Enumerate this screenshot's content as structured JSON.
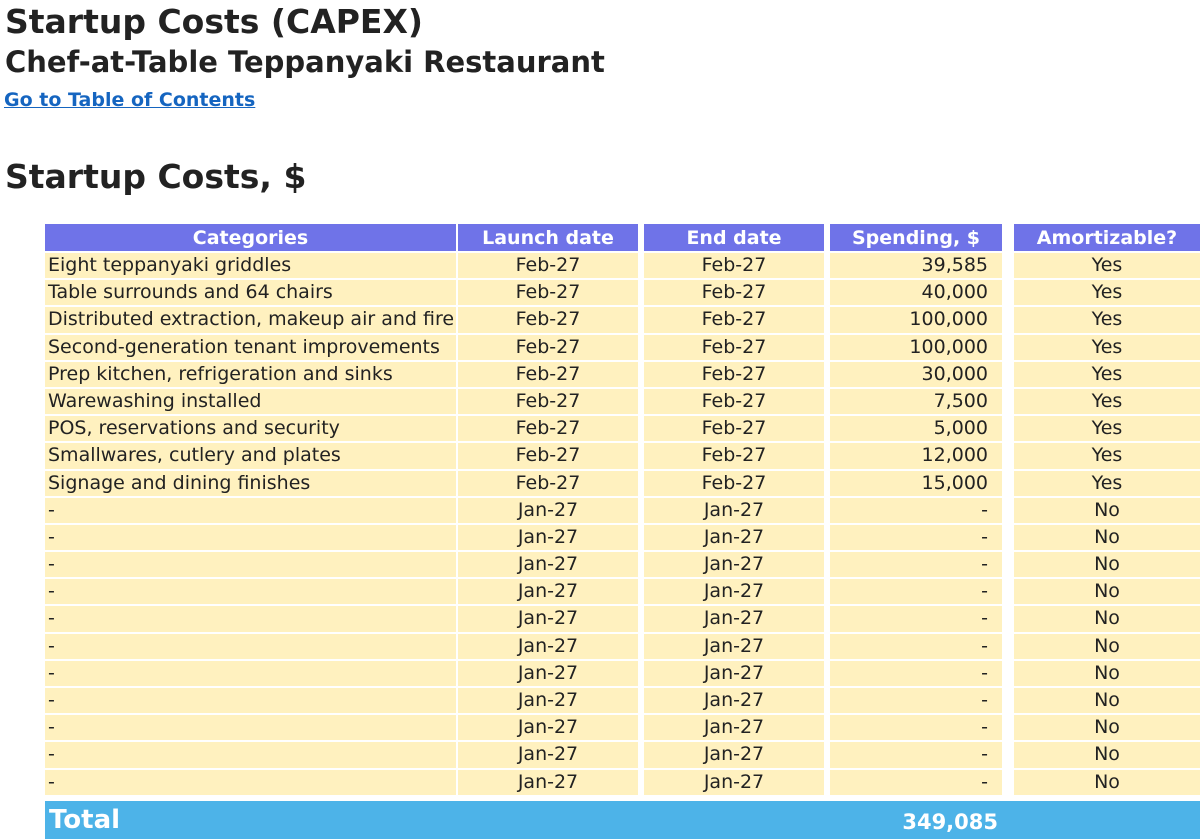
{
  "page": {
    "title": "Startup Costs (CAPEX)",
    "subtitle": "Chef-at-Table Teppanyaki Restaurant",
    "toc_link": "Go to Table of Contents",
    "section_title": "Startup Costs, $"
  },
  "table": {
    "headers": [
      "Categories",
      "Launch date",
      "End date",
      "Spending, $",
      "Amortizable?"
    ],
    "rows": [
      [
        "Eight teppanyaki griddles",
        "Feb-27",
        "Feb-27",
        "39,585",
        "Yes"
      ],
      [
        "Table surrounds and 64 chairs",
        "Feb-27",
        "Feb-27",
        "40,000",
        "Yes"
      ],
      [
        "Distributed extraction, makeup air and fire su",
        "Feb-27",
        "Feb-27",
        "100,000",
        "Yes"
      ],
      [
        "Second-generation tenant improvements",
        "Feb-27",
        "Feb-27",
        "100,000",
        "Yes"
      ],
      [
        "Prep kitchen, refrigeration and sinks",
        "Feb-27",
        "Feb-27",
        "30,000",
        "Yes"
      ],
      [
        "Warewashing installed",
        "Feb-27",
        "Feb-27",
        "7,500",
        "Yes"
      ],
      [
        "POS, reservations and security",
        "Feb-27",
        "Feb-27",
        "5,000",
        "Yes"
      ],
      [
        "Smallwares, cutlery and plates",
        "Feb-27",
        "Feb-27",
        "12,000",
        "Yes"
      ],
      [
        "Signage and dining finishes",
        "Feb-27",
        "Feb-27",
        "15,000",
        "Yes"
      ],
      [
        "-",
        "Jan-27",
        "Jan-27",
        "-",
        "No"
      ],
      [
        "-",
        "Jan-27",
        "Jan-27",
        "-",
        "No"
      ],
      [
        "-",
        "Jan-27",
        "Jan-27",
        "-",
        "No"
      ],
      [
        "-",
        "Jan-27",
        "Jan-27",
        "-",
        "No"
      ],
      [
        "-",
        "Jan-27",
        "Jan-27",
        "-",
        "No"
      ],
      [
        "-",
        "Jan-27",
        "Jan-27",
        "-",
        "No"
      ],
      [
        "-",
        "Jan-27",
        "Jan-27",
        "-",
        "No"
      ],
      [
        "-",
        "Jan-27",
        "Jan-27",
        "-",
        "No"
      ],
      [
        "-",
        "Jan-27",
        "Jan-27",
        "-",
        "No"
      ],
      [
        "-",
        "Jan-27",
        "Jan-27",
        "-",
        "No"
      ],
      [
        "-",
        "Jan-27",
        "Jan-27",
        "-",
        "No"
      ]
    ],
    "total_label": "Total",
    "total_value": "349,085"
  },
  "colors": {
    "header_bg": "#6f73e8",
    "cell_bg": "#fff1bf",
    "total_bg": "#4db3e8",
    "link": "#1565c0"
  }
}
